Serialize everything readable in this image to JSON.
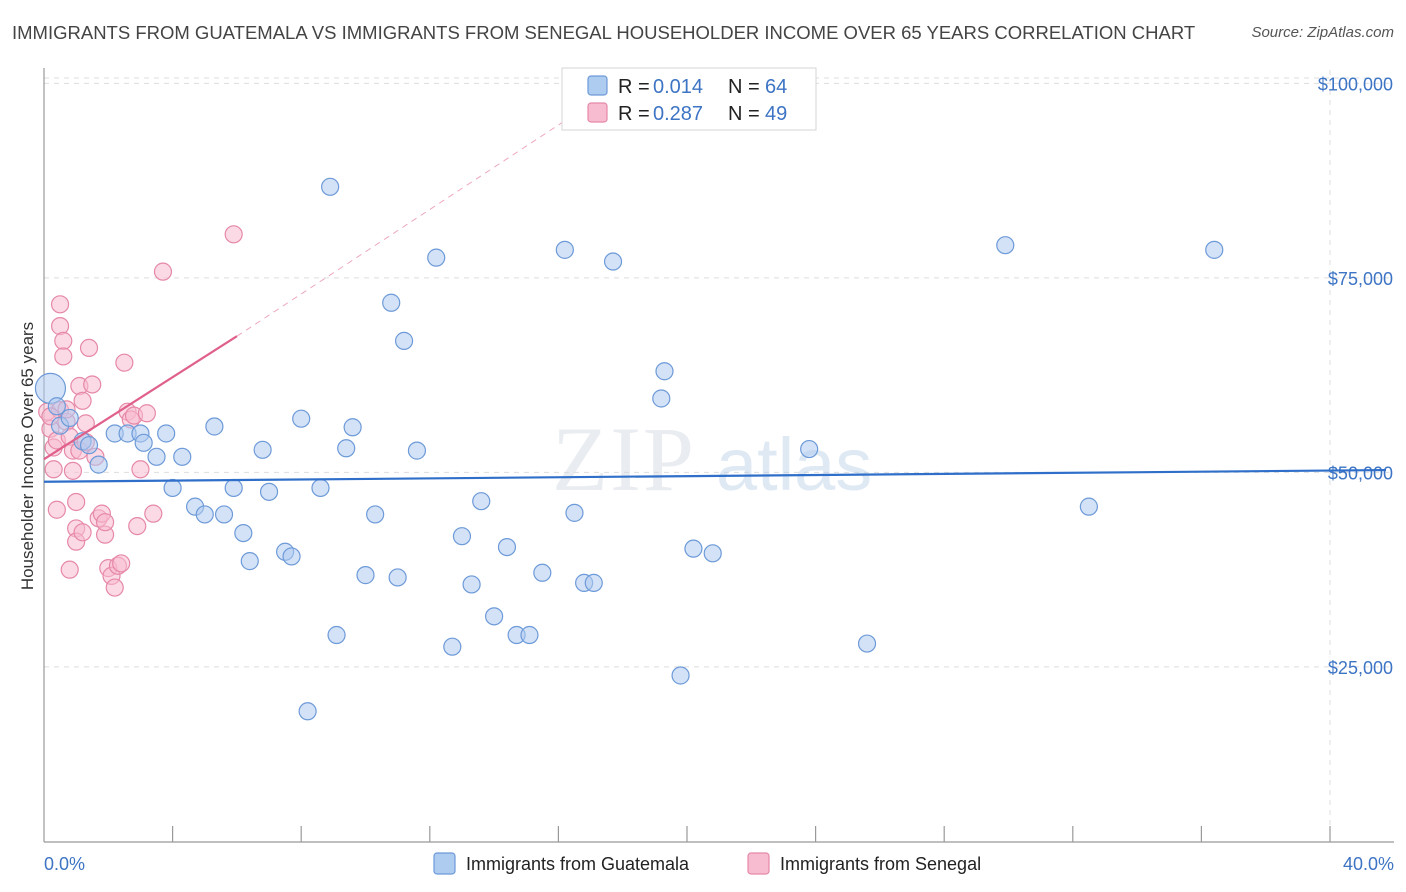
{
  "title": "IMMIGRANTS FROM GUATEMALA VS IMMIGRANTS FROM SENEGAL HOUSEHOLDER INCOME OVER 65 YEARS CORRELATION CHART",
  "source": "Source: ZipAtlas.com",
  "watermark": {
    "zip": "ZIP",
    "atlas": "atlas"
  },
  "colors": {
    "guatemala_fill": "#aecbf0",
    "guatemala_stroke": "#6d9ad8",
    "guatemala_line": "#2f6fc9",
    "senegal_fill": "#f7bcd0",
    "senegal_stroke": "#e688a8",
    "senegal_line": "#e0608c",
    "axis_label": "#3d74c4",
    "grid": "#dddddd"
  },
  "legend": {
    "r_label": "R =",
    "n_label": "N =",
    "guatemala": {
      "r": "0.014",
      "n": "64"
    },
    "senegal": {
      "r": "0.287",
      "n": "49"
    }
  },
  "chart_data": {
    "type": "scatter",
    "title": "IMMIGRANTS FROM GUATEMALA VS IMMIGRANTS FROM SENEGAL HOUSEHOLDER INCOME OVER 65 YEARS CORRELATION CHART",
    "xlabel": "",
    "ylabel": "Householder Income Over 65 years",
    "xlim": [
      0,
      40
    ],
    "ylim": [
      2500,
      103000
    ],
    "x_tick_labels": [
      "0.0%",
      "40.0%"
    ],
    "y_ticks": [
      25000,
      50000,
      75000,
      100000
    ],
    "y_tick_labels": [
      "$25,000",
      "$50,000",
      "$75,000",
      "$100,000"
    ],
    "grid": true,
    "legend_position": "top-center",
    "series": [
      {
        "name": "Immigrants from Guatemala",
        "r": 0.014,
        "n": 64,
        "trend": {
          "x": [
            0,
            40
          ],
          "y": [
            48800,
            50300
          ]
        },
        "points": [
          [
            0.2,
            60800
          ],
          [
            0.5,
            56000
          ],
          [
            0.8,
            57000
          ],
          [
            1.2,
            54000
          ],
          [
            1.4,
            53500
          ],
          [
            1.7,
            51000
          ],
          [
            2.2,
            55000
          ],
          [
            2.6,
            55000
          ],
          [
            3.0,
            55000
          ],
          [
            3.1,
            53800
          ],
          [
            3.5,
            52000
          ],
          [
            3.8,
            55000
          ],
          [
            4.0,
            48000
          ],
          [
            4.3,
            52000
          ],
          [
            4.7,
            45600
          ],
          [
            5.0,
            44600
          ],
          [
            5.3,
            55900
          ],
          [
            5.6,
            44600
          ],
          [
            5.9,
            48000
          ],
          [
            6.2,
            42200
          ],
          [
            6.4,
            38600
          ],
          [
            6.8,
            52900
          ],
          [
            7.0,
            47500
          ],
          [
            7.5,
            39800
          ],
          [
            7.7,
            39200
          ],
          [
            8.0,
            56900
          ],
          [
            8.2,
            19300
          ],
          [
            8.6,
            48000
          ],
          [
            8.9,
            86700
          ],
          [
            9.1,
            29100
          ],
          [
            9.4,
            53100
          ],
          [
            9.6,
            55800
          ],
          [
            10.0,
            36800
          ],
          [
            10.3,
            44600
          ],
          [
            10.8,
            71800
          ],
          [
            11.0,
            36500
          ],
          [
            11.2,
            66900
          ],
          [
            11.6,
            52800
          ],
          [
            12.2,
            77600
          ],
          [
            12.7,
            27600
          ],
          [
            13.0,
            41800
          ],
          [
            13.3,
            35600
          ],
          [
            13.6,
            46300
          ],
          [
            14.0,
            31500
          ],
          [
            14.4,
            40400
          ],
          [
            14.7,
            29100
          ],
          [
            15.1,
            29100
          ],
          [
            15.5,
            37100
          ],
          [
            16.2,
            78600
          ],
          [
            16.5,
            44800
          ],
          [
            16.8,
            35800
          ],
          [
            17.1,
            35800
          ],
          [
            17.7,
            77100
          ],
          [
            19.2,
            59500
          ],
          [
            19.3,
            63000
          ],
          [
            19.8,
            23900
          ],
          [
            20.2,
            40200
          ],
          [
            20.8,
            39600
          ],
          [
            23.8,
            53000
          ],
          [
            25.6,
            28000
          ],
          [
            29.9,
            79200
          ],
          [
            32.5,
            45600
          ],
          [
            36.4,
            78600
          ],
          [
            0.4,
            58500
          ]
        ]
      },
      {
        "name": "Immigrants from Senegal",
        "r": 0.287,
        "n": 49,
        "trend": {
          "x": [
            0,
            6.0
          ],
          "y": [
            51700,
            67500
          ]
        },
        "trend_extension": {
          "x": [
            6.0,
            16.5
          ],
          "y": [
            67500,
            96000
          ]
        },
        "points": [
          [
            0.1,
            57800
          ],
          [
            0.2,
            55600
          ],
          [
            0.3,
            53200
          ],
          [
            0.3,
            50400
          ],
          [
            0.4,
            45200
          ],
          [
            0.4,
            54100
          ],
          [
            0.5,
            58000
          ],
          [
            0.5,
            71600
          ],
          [
            0.5,
            68800
          ],
          [
            0.6,
            66900
          ],
          [
            0.6,
            64900
          ],
          [
            0.7,
            56500
          ],
          [
            0.7,
            58100
          ],
          [
            0.8,
            54600
          ],
          [
            0.9,
            52800
          ],
          [
            0.9,
            50200
          ],
          [
            1.0,
            46200
          ],
          [
            1.0,
            42800
          ],
          [
            1.1,
            52800
          ],
          [
            1.1,
            61100
          ],
          [
            1.2,
            59200
          ],
          [
            1.3,
            56300
          ],
          [
            1.3,
            53900
          ],
          [
            1.4,
            66000
          ],
          [
            1.5,
            61300
          ],
          [
            1.6,
            52000
          ],
          [
            1.7,
            44100
          ],
          [
            1.8,
            44700
          ],
          [
            1.9,
            42000
          ],
          [
            2.0,
            37700
          ],
          [
            2.1,
            36700
          ],
          [
            2.2,
            35200
          ],
          [
            2.3,
            38000
          ],
          [
            2.4,
            38300
          ],
          [
            2.5,
            64100
          ],
          [
            2.6,
            57800
          ],
          [
            2.7,
            56800
          ],
          [
            2.8,
            57300
          ],
          [
            2.9,
            43100
          ],
          [
            3.0,
            50400
          ],
          [
            3.2,
            57600
          ],
          [
            3.4,
            44700
          ],
          [
            3.7,
            75800
          ],
          [
            5.9,
            80600
          ],
          [
            1.0,
            41100
          ],
          [
            1.2,
            42300
          ],
          [
            0.2,
            57200
          ],
          [
            0.8,
            37500
          ],
          [
            1.9,
            43600
          ]
        ]
      }
    ]
  },
  "bottom_legend": {
    "guatemala": "Immigrants from Guatemala",
    "senegal": "Immigrants from Senegal"
  }
}
